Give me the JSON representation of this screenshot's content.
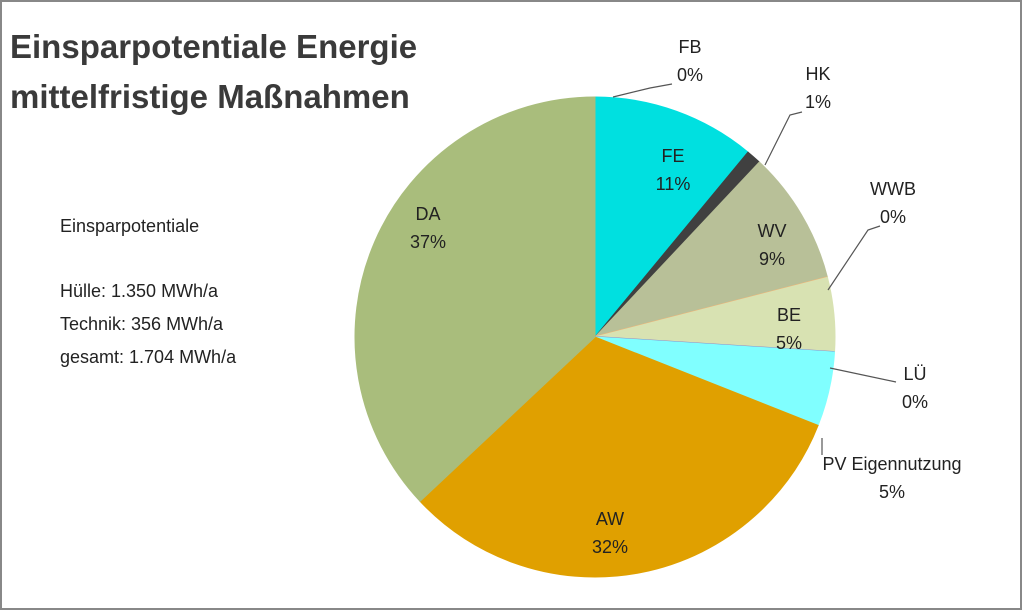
{
  "chart_data": {
    "type": "pie",
    "title": [
      "Einsparpotentiale Energie",
      "mittelfristige Maßnahmen"
    ],
    "categories": [
      "FB",
      "FE",
      "HK",
      "WV",
      "WWB",
      "BE",
      "LÜ",
      "PV Eigennutzung",
      "AW",
      "DA"
    ],
    "values": [
      0,
      11,
      1,
      9,
      0,
      5,
      0,
      5,
      32,
      37
    ],
    "value_labels": [
      "0%",
      "11%",
      "1%",
      "9%",
      "0%",
      "5%",
      "0%",
      "5%",
      "32%",
      "37%"
    ],
    "colors": [
      "#3cc8d8",
      "#00e0e0",
      "#404040",
      "#b8c098",
      "#f2b274",
      "#d8e2b2",
      "#8c8cc8",
      "#80ffff",
      "#e0a000",
      "#a9bd7c"
    ],
    "annotations": [
      "Einsparpotentiale",
      "Hülle:  1.350 MWh/a",
      "Technik: 356 MWh/a",
      "gesamt: 1.704 MWh/a"
    ]
  }
}
